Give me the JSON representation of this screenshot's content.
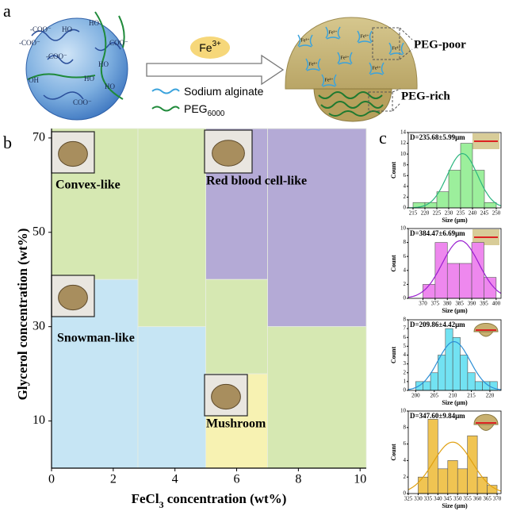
{
  "panel_labels": [
    "a",
    "b",
    "c"
  ],
  "diagram": {
    "sphere_labels": [
      "-COO⁻",
      "-COO⁻",
      "-COO⁻",
      "COO⁻",
      "COO⁻",
      "HO",
      "HO",
      "HO",
      "OH",
      "HO",
      "HO"
    ],
    "ion": {
      "text": "Fe",
      "sup": "3+"
    },
    "legend": [
      {
        "text": "Sodium alginate",
        "color": "#3ba3dc"
      },
      {
        "text": "PEG",
        "sub": "6000",
        "color": "#1f8a3a"
      }
    ],
    "cap_ion": "Fe³⁺",
    "callouts": [
      "PEG-poor",
      "PEG-rich"
    ]
  },
  "chart_data": [
    {
      "type": "region",
      "x_label": {
        "text": "FeCl",
        "sub": "3",
        "rest": " concentration (wt%)"
      },
      "y_label": "Glycerol concentration (wt%)",
      "xlim": [
        0,
        10.2
      ],
      "ylim": [
        0,
        72
      ],
      "xticks": [
        0,
        2,
        4,
        6,
        8,
        10
      ],
      "yticks": [
        10,
        30,
        50,
        70
      ],
      "regions": [
        {
          "x": [
            0,
            2.8
          ],
          "y": [
            40,
            72
          ],
          "color": "#d6e8b2"
        },
        {
          "x": [
            2.8,
            5
          ],
          "y": [
            30,
            72
          ],
          "color": "#d6e8b2"
        },
        {
          "x": [
            0,
            2.8
          ],
          "y": [
            0,
            40
          ],
          "color": "#c6e5f4"
        },
        {
          "x": [
            2.8,
            5
          ],
          "y": [
            0,
            30
          ],
          "color": "#c6e5f4"
        },
        {
          "x": [
            5,
            7
          ],
          "y": [
            40,
            72
          ],
          "color": "#b4aad6"
        },
        {
          "x": [
            7,
            10.2
          ],
          "y": [
            30,
            72
          ],
          "color": "#b4aad6"
        },
        {
          "x": [
            5,
            7
          ],
          "y": [
            20,
            40
          ],
          "color": "#d6e8b2"
        },
        {
          "x": [
            5,
            7
          ],
          "y": [
            0,
            20
          ],
          "color": "#f7f2b2"
        },
        {
          "x": [
            7,
            10.2
          ],
          "y": [
            0,
            30
          ],
          "color": "#d6e8b2"
        }
      ],
      "phases": [
        "Convex-like",
        "Red blood cell-like",
        "Snowman-like",
        "Mushroom"
      ]
    },
    {
      "type": "histogram",
      "title": "D=235.68±5.99μm",
      "x_label": "Size (μm)",
      "y_label": "Count",
      "bins": [
        215,
        220,
        225,
        230,
        235,
        240,
        245,
        250
      ],
      "values": [
        1,
        1,
        3,
        7,
        12,
        7,
        1
      ],
      "xlim": [
        213,
        252
      ],
      "xticks": [
        215,
        220,
        225,
        230,
        235,
        240,
        245,
        250
      ],
      "ylim": [
        0,
        14
      ],
      "yticks": [
        0,
        2,
        4,
        6,
        8,
        10,
        12,
        14
      ],
      "color": "#9cef9c",
      "line_color": "#2bb57f"
    },
    {
      "type": "histogram",
      "title": "D=384.47±6.69μm",
      "x_label": "Size (μm)",
      "y_label": "Count",
      "bins": [
        370,
        375,
        380,
        385,
        390,
        395,
        400
      ],
      "values": [
        2,
        8,
        5,
        5,
        8,
        3
      ],
      "xlim": [
        364,
        402
      ],
      "xticks": [
        370,
        375,
        380,
        385,
        390,
        395,
        400
      ],
      "ylim": [
        0,
        10
      ],
      "yticks": [
        0,
        2,
        4,
        6,
        8,
        10
      ],
      "color": "#ee88ee",
      "line_color": "#9a1fd0"
    },
    {
      "type": "histogram",
      "title": "D=209.86±4.42μm",
      "x_label": "Size (μm)",
      "y_label": "Count",
      "bins": [
        200,
        202,
        204,
        206,
        208,
        210,
        212,
        214,
        216,
        218,
        220,
        222
      ],
      "values": [
        1,
        1,
        2,
        4,
        7,
        6,
        4,
        2,
        1,
        1,
        1
      ],
      "xlim": [
        198,
        223
      ],
      "xticks": [
        200,
        205,
        210,
        215,
        220
      ],
      "ylim": [
        0,
        8
      ],
      "yticks": [
        0,
        1,
        2,
        3,
        4,
        5,
        6,
        7,
        8
      ],
      "color": "#72e2f2",
      "line_color": "#2c8fd6"
    },
    {
      "type": "histogram",
      "title": "D=347.60±9.84μm",
      "x_label": "Size (μm)",
      "y_label": "Count",
      "bins": [
        330,
        335,
        340,
        345,
        350,
        355,
        360,
        365,
        370
      ],
      "values": [
        2,
        9,
        3,
        4,
        3,
        7,
        2,
        1
      ],
      "xlim": [
        325,
        372
      ],
      "xticks": [
        325,
        330,
        335,
        340,
        345,
        350,
        355,
        360,
        365,
        370
      ],
      "ylim": [
        0,
        10
      ],
      "yticks": [
        0,
        2,
        4,
        6,
        8,
        10
      ],
      "color": "#f0c452",
      "line_color": "#e0a010"
    }
  ]
}
